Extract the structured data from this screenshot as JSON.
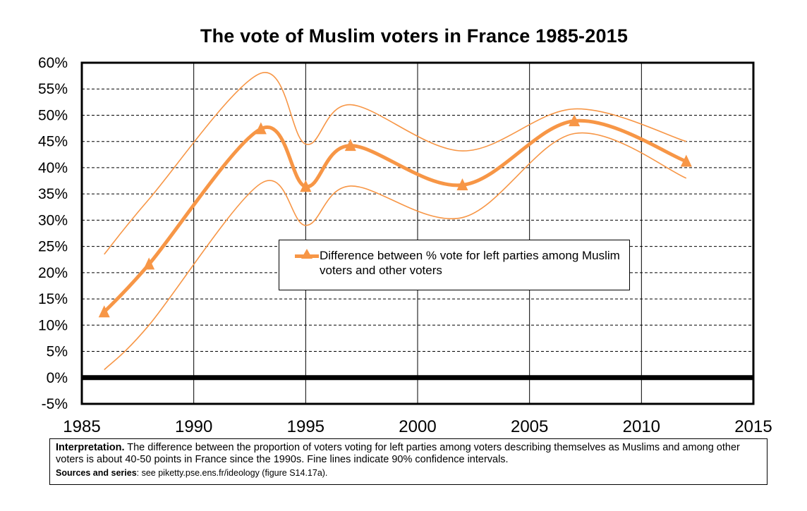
{
  "chart_data": {
    "type": "line",
    "title": "The vote of Muslim voters in France 1985-2015",
    "xlim": [
      1985,
      2015
    ],
    "ylim": [
      -0.05,
      0.6
    ],
    "x_ticks": [
      "1985",
      "1990",
      "1995",
      "2000",
      "2005",
      "2010",
      "2015"
    ],
    "y_ticks": [
      "60%",
      "55%",
      "50%",
      "45%",
      "40%",
      "35%",
      "30%",
      "25%",
      "20%",
      "15%",
      "10%",
      "5%",
      "0%",
      "-5%"
    ],
    "grid": true,
    "legend_position": "center",
    "series": [
      {
        "name": "Difference between % vote for left parties among Muslim voters and other voters",
        "color": "#f79646",
        "marker": "triangle",
        "x": [
          1986,
          1988,
          1993,
          1995,
          1997,
          2002,
          2007,
          2012
        ],
        "values": [
          0.125,
          0.216,
          0.474,
          0.364,
          0.442,
          0.367,
          0.489,
          0.412
        ]
      }
    ],
    "confidence_interval": {
      "label": "90% confidence intervals",
      "x": [
        1986,
        1988,
        1993,
        1995,
        1997,
        2002,
        2007,
        2012
      ],
      "upper": [
        0.235,
        0.34,
        0.58,
        0.445,
        0.52,
        0.432,
        0.512,
        0.45
      ],
      "lower": [
        0.015,
        0.1,
        0.37,
        0.29,
        0.365,
        0.305,
        0.465,
        0.38
      ]
    }
  },
  "legend": {
    "label": "Difference between % vote for left parties among Muslim voters and other voters"
  },
  "note": {
    "interpretation_label": "Interpretation.",
    "interpretation_text": "The difference between the proportion of voters voting for left parties among voters describing themselves as Muslims and among other voters is about 40-50 points in France since the 1990s. Fine lines indicate 90% confidence intervals.",
    "sources_label": "Sources and series",
    "sources_text": ": see piketty.pse.ens.fr/ideology (figure S14.17a)."
  }
}
